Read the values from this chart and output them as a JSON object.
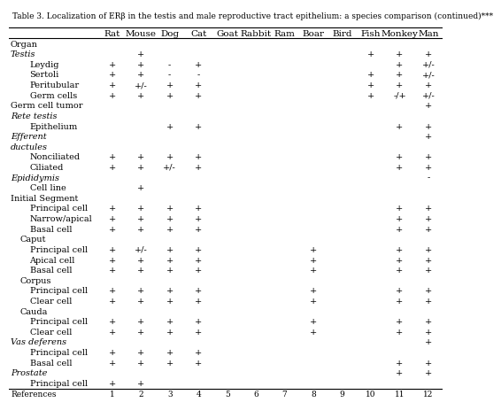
{
  "title": "Table 3. Localization of ERβ in the testis and male reproductive tract epithelium: a species comparison (continued)***",
  "columns": [
    "",
    "Rat",
    "Mouse",
    "Dog",
    "Cat",
    "Goat",
    "Rabbit",
    "Ram",
    "Boar",
    "Bird",
    "Fish",
    "Monkey",
    "Man"
  ],
  "rows": [
    {
      "label": "Organ",
      "indent": 0,
      "style": "normal",
      "values": [
        "",
        "",
        "",
        "",
        "",
        "",
        "",
        "",
        "",
        "",
        "",
        ""
      ]
    },
    {
      "label": "Testis",
      "indent": 0,
      "style": "italic",
      "values": [
        "",
        "+",
        "",
        "",
        "",
        "",
        "",
        "",
        "",
        "+",
        "+",
        "+"
      ]
    },
    {
      "label": "Leydig",
      "indent": 2,
      "style": "normal",
      "values": [
        "+",
        "+",
        "-",
        "+",
        "",
        "",
        "",
        "",
        "",
        "",
        "+",
        "+/-"
      ]
    },
    {
      "label": "Sertoli",
      "indent": 2,
      "style": "normal",
      "values": [
        "+",
        "+",
        "-",
        "-",
        "",
        "",
        "",
        "",
        "",
        "+",
        "+",
        "+/-"
      ]
    },
    {
      "label": "Peritubular",
      "indent": 2,
      "style": "normal",
      "values": [
        "+",
        "+/-",
        "+",
        "+",
        "",
        "",
        "",
        "",
        "",
        "+",
        "+",
        "+"
      ]
    },
    {
      "label": "Germ cells",
      "indent": 2,
      "style": "normal",
      "values": [
        "+",
        "+",
        "+",
        "+",
        "",
        "",
        "",
        "",
        "",
        "+",
        "-/+",
        "+/-"
      ]
    },
    {
      "label": "Germ cell tumor",
      "indent": 0,
      "style": "normal",
      "values": [
        "",
        "",
        "",
        "",
        "",
        "",
        "",
        "",
        "",
        "",
        "",
        "+"
      ]
    },
    {
      "label": "Rete testis",
      "indent": 0,
      "style": "italic",
      "values": [
        "",
        "",
        "",
        "",
        "",
        "",
        "",
        "",
        "",
        "",
        "",
        ""
      ]
    },
    {
      "label": "Epithelium",
      "indent": 2,
      "style": "normal",
      "values": [
        "",
        "",
        "+",
        "+",
        "",
        "",
        "",
        "",
        "",
        "",
        "+",
        "+"
      ]
    },
    {
      "label": "Efferent",
      "indent": 0,
      "style": "italic",
      "values": [
        "",
        "",
        "",
        "",
        "",
        "",
        "",
        "",
        "",
        "",
        "",
        "+"
      ]
    },
    {
      "label": "ductules",
      "indent": 0,
      "style": "italic",
      "values": [
        "",
        "",
        "",
        "",
        "",
        "",
        "",
        "",
        "",
        "",
        "",
        ""
      ]
    },
    {
      "label": "Nonciliated",
      "indent": 2,
      "style": "normal",
      "values": [
        "+",
        "+",
        "+",
        "+",
        "",
        "",
        "",
        "",
        "",
        "",
        "+",
        "+"
      ]
    },
    {
      "label": "Ciliated",
      "indent": 2,
      "style": "normal",
      "values": [
        "+",
        "+",
        "+/-",
        "+",
        "",
        "",
        "",
        "",
        "",
        "",
        "+",
        "+"
      ]
    },
    {
      "label": "Epididymis",
      "indent": 0,
      "style": "italic",
      "values": [
        "",
        "",
        "",
        "",
        "",
        "",
        "",
        "",
        "",
        "",
        "",
        "-"
      ]
    },
    {
      "label": "Cell line",
      "indent": 2,
      "style": "normal",
      "values": [
        "",
        "+",
        "",
        "",
        "",
        "",
        "",
        "",
        "",
        "",
        "",
        ""
      ]
    },
    {
      "label": "Initial Segment",
      "indent": 0,
      "style": "normal",
      "values": [
        "",
        "",
        "",
        "",
        "",
        "",
        "",
        "",
        "",
        "",
        "",
        ""
      ]
    },
    {
      "label": "Principal cell",
      "indent": 2,
      "style": "normal",
      "values": [
        "+",
        "+",
        "+",
        "+",
        "",
        "",
        "",
        "",
        "",
        "",
        "+",
        "+"
      ]
    },
    {
      "label": "Narrow/apical",
      "indent": 2,
      "style": "normal",
      "values": [
        "+",
        "+",
        "+",
        "+",
        "",
        "",
        "",
        "",
        "",
        "",
        "+",
        "+"
      ]
    },
    {
      "label": "Basal cell",
      "indent": 2,
      "style": "normal",
      "values": [
        "+",
        "+",
        "+",
        "+",
        "",
        "",
        "",
        "",
        "",
        "",
        "+",
        "+"
      ]
    },
    {
      "label": "Caput",
      "indent": 1,
      "style": "normal",
      "values": [
        "",
        "",
        "",
        "",
        "",
        "",
        "",
        "",
        "",
        "",
        "",
        ""
      ]
    },
    {
      "label": "Principal cell",
      "indent": 2,
      "style": "normal",
      "values": [
        "+",
        "+/-",
        "+",
        "+",
        "",
        "",
        "",
        "+",
        "",
        "",
        "+",
        "+"
      ]
    },
    {
      "label": "Apical cell",
      "indent": 2,
      "style": "normal",
      "values": [
        "+",
        "+",
        "+",
        "+",
        "",
        "",
        "",
        "+",
        "",
        "",
        "+",
        "+"
      ]
    },
    {
      "label": "Basal cell",
      "indent": 2,
      "style": "normal",
      "values": [
        "+",
        "+",
        "+",
        "+",
        "",
        "",
        "",
        "+",
        "",
        "",
        "+",
        "+"
      ]
    },
    {
      "label": "Corpus",
      "indent": 1,
      "style": "normal",
      "values": [
        "",
        "",
        "",
        "",
        "",
        "",
        "",
        "",
        "",
        "",
        "",
        ""
      ]
    },
    {
      "label": "Principal cell",
      "indent": 2,
      "style": "normal",
      "values": [
        "+",
        "+",
        "+",
        "+",
        "",
        "",
        "",
        "+",
        "",
        "",
        "+",
        "+"
      ]
    },
    {
      "label": "Clear cell",
      "indent": 2,
      "style": "normal",
      "values": [
        "+",
        "+",
        "+",
        "+",
        "",
        "",
        "",
        "+",
        "",
        "",
        "+",
        "+"
      ]
    },
    {
      "label": "Cauda",
      "indent": 1,
      "style": "normal",
      "values": [
        "",
        "",
        "",
        "",
        "",
        "",
        "",
        "",
        "",
        "",
        "",
        ""
      ]
    },
    {
      "label": "Principal cell",
      "indent": 2,
      "style": "normal",
      "values": [
        "+",
        "+",
        "+",
        "+",
        "",
        "",
        "",
        "+",
        "",
        "",
        "+",
        "+"
      ]
    },
    {
      "label": "Clear cell",
      "indent": 2,
      "style": "normal",
      "values": [
        "+",
        "+",
        "+",
        "+",
        "",
        "",
        "",
        "+",
        "",
        "",
        "+",
        "+"
      ]
    },
    {
      "label": "Vas deferens",
      "indent": 0,
      "style": "italic",
      "values": [
        "",
        "",
        "",
        "",
        "",
        "",
        "",
        "",
        "",
        "",
        "",
        "+"
      ]
    },
    {
      "label": "Principal cell",
      "indent": 2,
      "style": "normal",
      "values": [
        "+",
        "+",
        "+",
        "+",
        "",
        "",
        "",
        "",
        "",
        "",
        "",
        ""
      ]
    },
    {
      "label": "Basal cell",
      "indent": 2,
      "style": "normal",
      "values": [
        "+",
        "+",
        "+",
        "+",
        "",
        "",
        "",
        "",
        "",
        "",
        "+",
        "+"
      ]
    },
    {
      "label": "Prostate",
      "indent": 0,
      "style": "italic",
      "values": [
        "",
        "",
        "",
        "",
        "",
        "",
        "",
        "",
        "",
        "",
        "+",
        "+"
      ]
    },
    {
      "label": "Principal cell",
      "indent": 2,
      "style": "normal",
      "values": [
        "+",
        "+",
        "",
        "",
        "",
        "",
        "",
        "",
        "",
        "",
        "",
        ""
      ]
    },
    {
      "label": "References",
      "indent": 0,
      "style": "normal_ref",
      "values": [
        "1",
        "2",
        "3",
        "4",
        "5",
        "6",
        "7",
        "8",
        "9",
        "10",
        "11",
        "12"
      ]
    }
  ],
  "bg_color": "#ffffff",
  "text_color": "#000000",
  "header_fontsize": 7.5,
  "body_fontsize": 7.0,
  "title_fontsize": 6.5
}
